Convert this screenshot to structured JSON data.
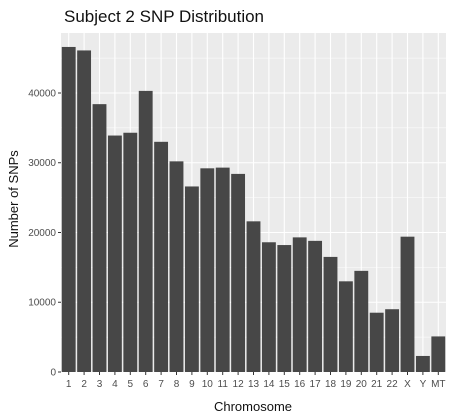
{
  "chart_data": {
    "type": "bar",
    "title": "Subject 2 SNP Distribution",
    "xlabel": "Chromosome",
    "ylabel": "Number of SNPs",
    "categories": [
      "1",
      "2",
      "3",
      "4",
      "5",
      "6",
      "7",
      "8",
      "9",
      "10",
      "11",
      "12",
      "13",
      "14",
      "15",
      "16",
      "17",
      "18",
      "19",
      "20",
      "21",
      "22",
      "X",
      "Y",
      "MT"
    ],
    "values": [
      46600,
      46100,
      38400,
      33900,
      34300,
      40300,
      33000,
      30200,
      26600,
      29200,
      29300,
      28400,
      21600,
      18600,
      18200,
      19300,
      18800,
      16500,
      13000,
      14500,
      8500,
      9000,
      19400,
      2300,
      5100
    ],
    "ylim": [
      0,
      48600
    ],
    "yticks": [
      0,
      10000,
      20000,
      30000,
      40000
    ],
    "grid": true,
    "legend": "none",
    "colors": {
      "panel": "#ebebeb",
      "grid": "#ffffff",
      "bar": "#474747"
    }
  }
}
